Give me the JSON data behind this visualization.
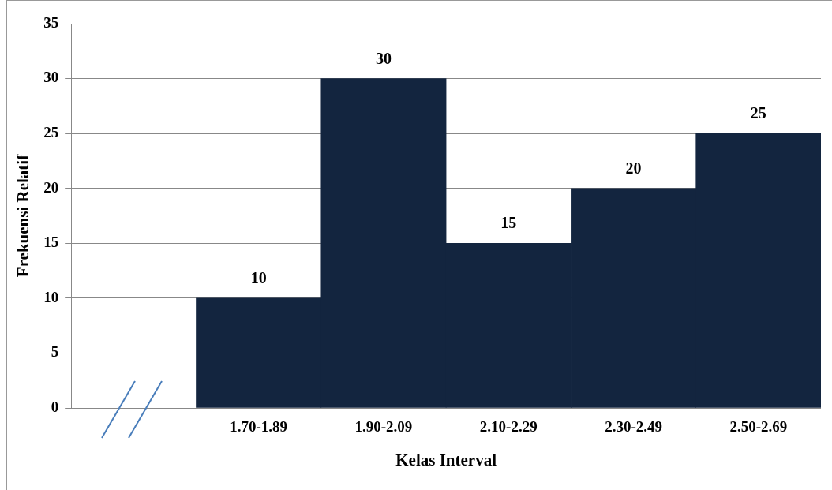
{
  "chart_data": {
    "type": "bar",
    "xlabel": "Kelas Interval",
    "ylabel": "Frekuensi Relatif",
    "categories": [
      null,
      "1.70-1.89",
      "1.90-2.09",
      "2.10-2.29",
      "2.30-2.49",
      "2.50-2.69"
    ],
    "values": [
      null,
      10,
      30,
      15,
      20,
      25
    ],
    "color": "#13253f",
    "ylim": [
      0,
      35
    ],
    "yticks": [
      0,
      5,
      10,
      15,
      20,
      25,
      30,
      35
    ],
    "grid": "y",
    "data_labels": true,
    "legend": false
  }
}
